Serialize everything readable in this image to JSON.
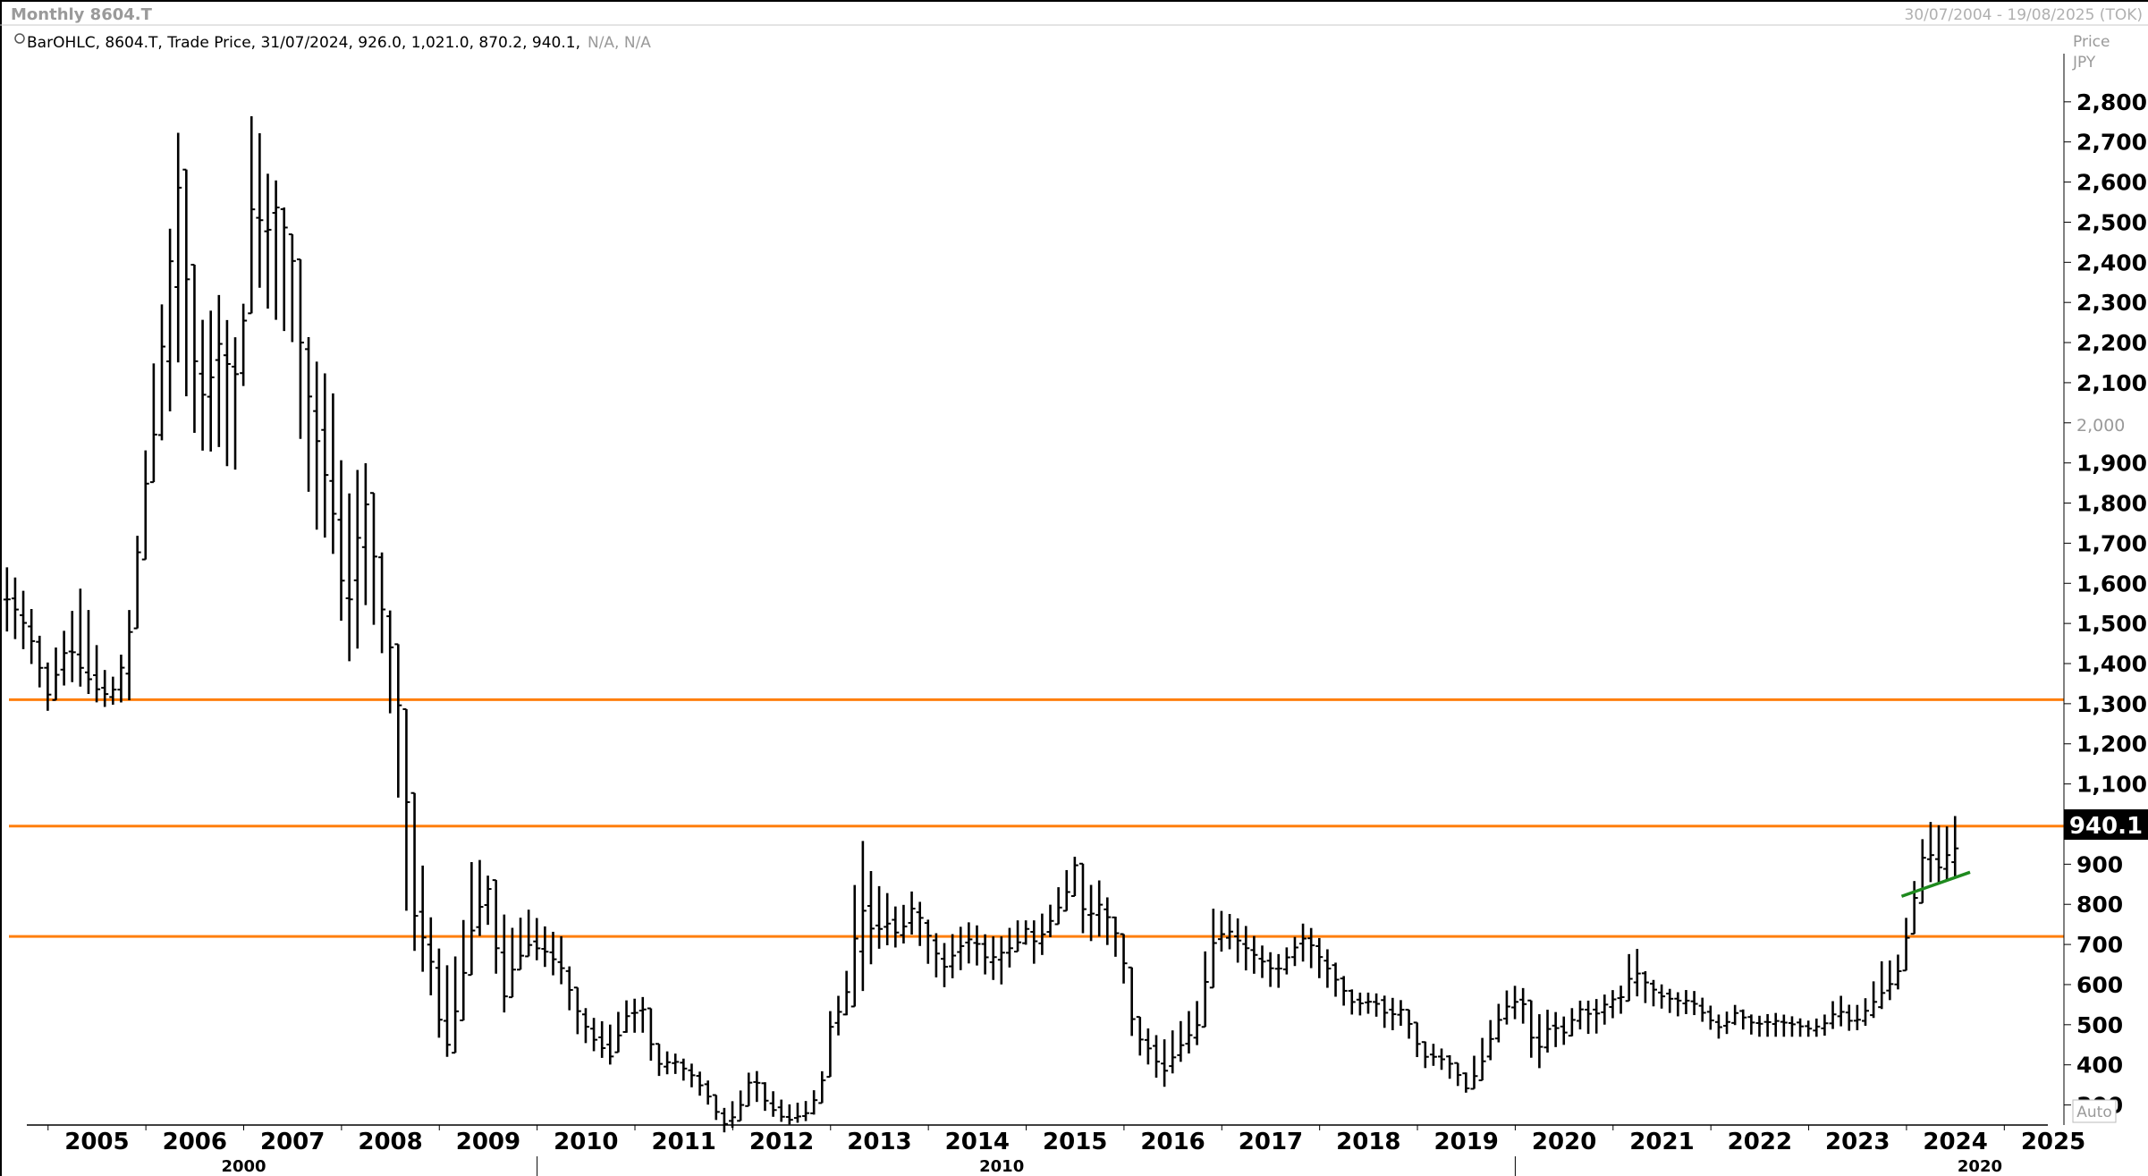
{
  "header": {
    "title": "Monthly 8604.T",
    "date_range": "30/07/2004 - 19/08/2025 (TOK)",
    "legend_name": "BarOHLC, 8604.T, Trade Price, 31/07/2024, 926.0, 1,021.0, 870.2, 940.1,",
    "legend_na": "N/A, N/A"
  },
  "axis": {
    "price_label": "Price",
    "currency_label": "JPY",
    "auto_label": "Auto",
    "last_price_label": "940.1",
    "y_ticks": [
      "2,800",
      "2,700",
      "2,600",
      "2,500",
      "2,400",
      "2,300",
      "2,200",
      "2,100",
      "2,000",
      "1,900",
      "1,800",
      "1,700",
      "1,600",
      "1,500",
      "1,400",
      "1,300",
      "1,200",
      "1,100",
      "1,000",
      "900",
      "800",
      "700",
      "600",
      "500",
      "400",
      "300"
    ],
    "x_year_labels": [
      "2005",
      "2006",
      "2007",
      "2008",
      "2009",
      "2010",
      "2011",
      "2012",
      "2013",
      "2014",
      "2015",
      "2016",
      "2017",
      "2018",
      "2019",
      "2020",
      "2021",
      "2022",
      "2023",
      "2024",
      "2025"
    ],
    "decade_labels": [
      "2000",
      "2010",
      "2020"
    ]
  },
  "colors": {
    "bars": "#000000",
    "support_lines": "#ff7f0e",
    "trend_line": "#1e8a1e",
    "muted_text": "#9a9a9a"
  },
  "chart_data": {
    "type": "bar",
    "subtype": "ohlc-monthly",
    "ylim": [
      250,
      2920
    ],
    "xlim_years": [
      2004.6,
      2025.5
    ],
    "horizontal_lines": [
      1310,
      995,
      720
    ],
    "trend_line": {
      "x": [
        2023.95,
        2024.65
      ],
      "y": [
        820,
        880
      ]
    },
    "last_value": 940.1,
    "anchors": [
      [
        2004.6,
        1560,
        1640,
        1480
      ],
      [
        2004.8,
        1480,
        1560,
        1420
      ],
      [
        2005.0,
        1320,
        1400,
        1280
      ],
      [
        2005.2,
        1450,
        1500,
        1360
      ],
      [
        2005.35,
        1380,
        1600,
        1340
      ],
      [
        2005.55,
        1320,
        1390,
        1290
      ],
      [
        2005.7,
        1340,
        1360,
        1300
      ],
      [
        2005.85,
        1500,
        1560,
        1310
      ],
      [
        2005.95,
        1780,
        1810,
        1620
      ],
      [
        2006.1,
        2000,
        2200,
        1950
      ],
      [
        2006.2,
        2300,
        2350,
        1960
      ],
      [
        2006.35,
        2630,
        2780,
        2180
      ],
      [
        2006.45,
        2200,
        2300,
        2000
      ],
      [
        2006.6,
        2050,
        2250,
        1920
      ],
      [
        2006.75,
        2200,
        2320,
        1940
      ],
      [
        2006.9,
        2100,
        2200,
        1850
      ],
      [
        2007.0,
        2260,
        2300,
        2100
      ],
      [
        2007.1,
        2600,
        2880,
        2400
      ],
      [
        2007.2,
        2450,
        2630,
        2300
      ],
      [
        2007.35,
        2550,
        2600,
        2250
      ],
      [
        2007.5,
        2400,
        2450,
        2200
      ],
      [
        2007.6,
        2150,
        2260,
        1900
      ],
      [
        2007.75,
        1950,
        2150,
        1730
      ],
      [
        2007.9,
        1800,
        2100,
        1700
      ],
      [
        2008.05,
        1500,
        1800,
        1400
      ],
      [
        2008.15,
        1700,
        1880,
        1420
      ],
      [
        2008.25,
        1800,
        1900,
        1550
      ],
      [
        2008.4,
        1550,
        1700,
        1450
      ],
      [
        2008.55,
        1380,
        1440,
        1180
      ],
      [
        2008.65,
        1100,
        1200,
        800
      ],
      [
        2008.75,
        760,
        1030,
        680
      ],
      [
        2008.9,
        680,
        780,
        590
      ],
      [
        2009.05,
        420,
        640,
        400
      ],
      [
        2009.2,
        570,
        680,
        500
      ],
      [
        2009.35,
        760,
        940,
        700
      ],
      [
        2009.5,
        840,
        870,
        750
      ],
      [
        2009.65,
        560,
        780,
        520
      ],
      [
        2009.75,
        640,
        740,
        600
      ],
      [
        2009.9,
        700,
        790,
        680
      ],
      [
        2010.1,
        680,
        740,
        640
      ],
      [
        2010.25,
        640,
        720,
        600
      ],
      [
        2010.4,
        540,
        580,
        480
      ],
      [
        2010.55,
        470,
        520,
        440
      ],
      [
        2010.75,
        420,
        500,
        400
      ],
      [
        2010.9,
        520,
        560,
        480
      ],
      [
        2011.1,
        540,
        570,
        480
      ],
      [
        2011.2,
        400,
        440,
        370
      ],
      [
        2011.4,
        410,
        430,
        380
      ],
      [
        2011.6,
        370,
        400,
        340
      ],
      [
        2011.75,
        320,
        360,
        300
      ],
      [
        2011.9,
        250,
        290,
        230
      ],
      [
        2012.05,
        280,
        320,
        250
      ],
      [
        2012.2,
        380,
        400,
        320
      ],
      [
        2012.35,
        300,
        350,
        280
      ],
      [
        2012.55,
        260,
        300,
        250
      ],
      [
        2012.75,
        280,
        310,
        260
      ],
      [
        2012.9,
        340,
        360,
        290
      ],
      [
        2013.0,
        500,
        540,
        420
      ],
      [
        2013.15,
        560,
        600,
        520
      ],
      [
        2013.3,
        800,
        985,
        560
      ],
      [
        2013.45,
        720,
        850,
        680
      ],
      [
        2013.55,
        760,
        840,
        700
      ],
      [
        2013.7,
        720,
        780,
        690
      ],
      [
        2013.85,
        800,
        840,
        730
      ],
      [
        2014.0,
        720,
        760,
        650
      ],
      [
        2014.15,
        640,
        700,
        590
      ],
      [
        2014.3,
        690,
        740,
        630
      ],
      [
        2014.45,
        720,
        760,
        660
      ],
      [
        2014.6,
        660,
        720,
        620
      ],
      [
        2014.75,
        680,
        720,
        600
      ],
      [
        2014.9,
        700,
        760,
        680
      ],
      [
        2015.0,
        740,
        760,
        700
      ],
      [
        2015.1,
        700,
        760,
        640
      ],
      [
        2015.25,
        760,
        800,
        720
      ],
      [
        2015.4,
        820,
        880,
        780
      ],
      [
        2015.5,
        900,
        920,
        840
      ],
      [
        2015.6,
        760,
        840,
        700
      ],
      [
        2015.75,
        800,
        860,
        720
      ],
      [
        2015.9,
        740,
        780,
        680
      ],
      [
        2016.0,
        650,
        700,
        600
      ],
      [
        2016.1,
        480,
        520,
        440
      ],
      [
        2016.25,
        440,
        490,
        400
      ],
      [
        2016.4,
        380,
        460,
        340
      ],
      [
        2016.55,
        440,
        500,
        400
      ],
      [
        2016.75,
        500,
        560,
        450
      ],
      [
        2016.9,
        700,
        790,
        650
      ],
      [
        2017.05,
        740,
        780,
        700
      ],
      [
        2017.2,
        700,
        760,
        640
      ],
      [
        2017.4,
        660,
        700,
        620
      ],
      [
        2017.55,
        630,
        670,
        580
      ],
      [
        2017.7,
        680,
        700,
        640
      ],
      [
        2017.85,
        720,
        760,
        660
      ],
      [
        2018.05,
        650,
        700,
        600
      ],
      [
        2018.2,
        600,
        640,
        560
      ],
      [
        2018.35,
        550,
        580,
        520
      ],
      [
        2018.55,
        560,
        580,
        530
      ],
      [
        2018.7,
        520,
        570,
        480
      ],
      [
        2018.85,
        540,
        560,
        500
      ],
      [
        2019.05,
        420,
        460,
        390
      ],
      [
        2019.2,
        420,
        450,
        400
      ],
      [
        2019.35,
        400,
        420,
        360
      ],
      [
        2019.5,
        340,
        380,
        330
      ],
      [
        2019.65,
        400,
        460,
        360
      ],
      [
        2019.8,
        500,
        540,
        440
      ],
      [
        2019.95,
        560,
        600,
        520
      ],
      [
        2020.1,
        550,
        590,
        500
      ],
      [
        2020.2,
        420,
        520,
        370
      ],
      [
        2020.35,
        500,
        540,
        440
      ],
      [
        2020.5,
        480,
        520,
        450
      ],
      [
        2020.65,
        540,
        560,
        490
      ],
      [
        2020.8,
        520,
        560,
        470
      ],
      [
        2020.95,
        560,
        580,
        510
      ],
      [
        2021.1,
        570,
        600,
        530
      ],
      [
        2021.2,
        640,
        720,
        580
      ],
      [
        2021.35,
        600,
        620,
        550
      ],
      [
        2021.5,
        570,
        600,
        540
      ],
      [
        2021.65,
        560,
        580,
        520
      ],
      [
        2021.8,
        560,
        590,
        530
      ],
      [
        2021.95,
        520,
        560,
        500
      ],
      [
        2022.1,
        490,
        520,
        460
      ],
      [
        2022.25,
        530,
        550,
        500
      ],
      [
        2022.45,
        500,
        520,
        470
      ],
      [
        2022.65,
        510,
        530,
        470
      ],
      [
        2022.85,
        500,
        520,
        470
      ],
      [
        2023.0,
        490,
        510,
        470
      ],
      [
        2023.15,
        500,
        520,
        470
      ],
      [
        2023.3,
        540,
        580,
        500
      ],
      [
        2023.45,
        500,
        540,
        480
      ],
      [
        2023.6,
        540,
        570,
        500
      ],
      [
        2023.75,
        580,
        660,
        540
      ],
      [
        2023.9,
        620,
        660,
        580
      ],
      [
        2024.0,
        720,
        770,
        640
      ],
      [
        2024.1,
        840,
        880,
        790
      ],
      [
        2024.2,
        960,
        1010,
        860
      ],
      [
        2024.3,
        880,
        1000,
        850
      ],
      [
        2024.4,
        920,
        990,
        860
      ],
      [
        2024.5,
        940.1,
        1021,
        870.2
      ]
    ]
  }
}
